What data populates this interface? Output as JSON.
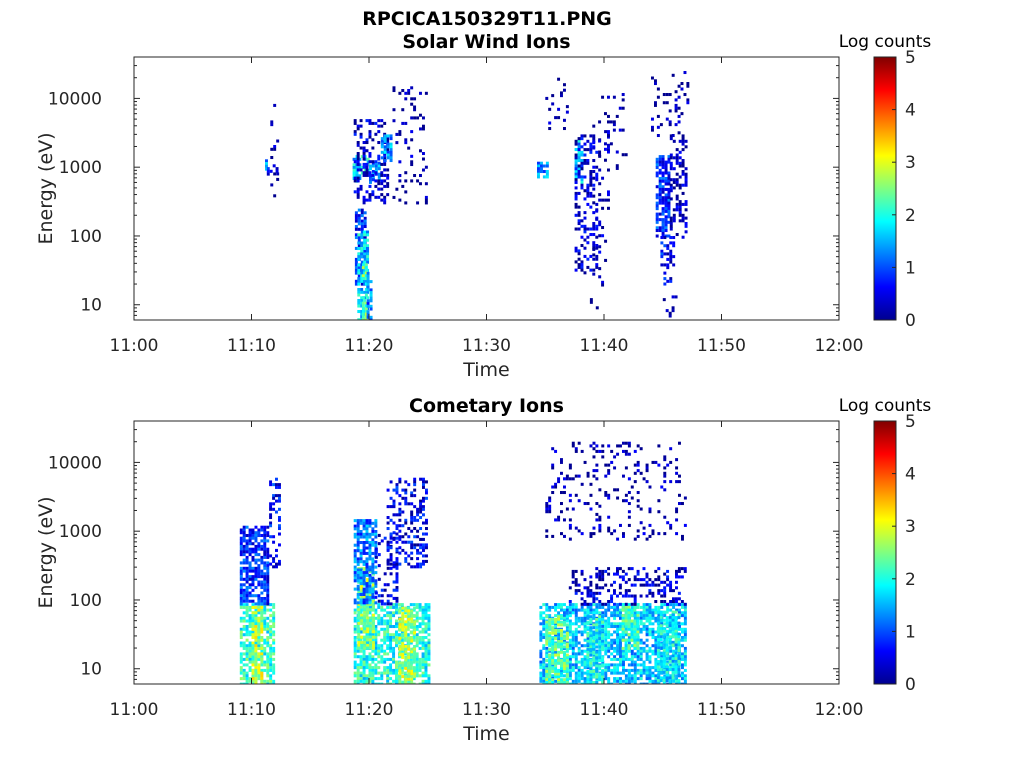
{
  "figure": {
    "suptitle": "RPCICA150329T11.PNG"
  },
  "colormap": [
    "#00008f",
    "#0000ff",
    "#0080ff",
    "#00ffff",
    "#80ff80",
    "#ffff00",
    "#ff8000",
    "#ff0000",
    "#800000"
  ],
  "chart_data": [
    {
      "type": "heatmap",
      "title": "Solar Wind Ions",
      "xlabel": "Time",
      "ylabel": "Energy (eV)",
      "y_scale": "log",
      "xlim": [
        "11:00",
        "12:00"
      ],
      "ylim": [
        6,
        40000
      ],
      "x_ticks": [
        "11:00",
        "11:10",
        "11:20",
        "11:30",
        "11:40",
        "11:50",
        "12:00"
      ],
      "y_ticks": [
        {
          "value": 10,
          "label": "10"
        },
        {
          "value": 100,
          "label": "100"
        },
        {
          "value": 1000,
          "label": "1000"
        },
        {
          "value": 10000,
          "label": "10000"
        }
      ],
      "colorbar": {
        "label": "Log counts",
        "range": [
          0,
          5
        ],
        "ticks": [
          "0",
          "1",
          "2",
          "3",
          "4",
          "5"
        ]
      },
      "blocks": [
        {
          "t": [
            11.15,
            11.3
          ],
          "e": [
            800,
            1300
          ],
          "v": 1.2
        },
        {
          "t": [
            11.3,
            12.2
          ],
          "e": [
            700,
            1100
          ],
          "v": 0.6
        },
        {
          "t": [
            11.6,
            12.2
          ],
          "e": [
            330,
            12000
          ],
          "v": 0.1
        },
        {
          "t": [
            18.6,
            19.3
          ],
          "e": [
            600,
            1500
          ],
          "v": 1.6
        },
        {
          "t": [
            19.3,
            20.0
          ],
          "e": [
            800,
            1500
          ],
          "v": 1.9
        },
        {
          "t": [
            20.0,
            21.0
          ],
          "e": [
            600,
            1200
          ],
          "v": 1.3
        },
        {
          "t": [
            18.7,
            21.5
          ],
          "e": [
            300,
            5000
          ],
          "v": 0.3
        },
        {
          "t": [
            21.0,
            22.0
          ],
          "e": [
            1300,
            3000
          ],
          "v": 1.4
        },
        {
          "t": [
            18.8,
            19.6
          ],
          "e": [
            20,
            250
          ],
          "v": 0.8
        },
        {
          "t": [
            19.0,
            19.8
          ],
          "e": [
            6,
            120
          ],
          "v": 1.7
        },
        {
          "t": [
            19.4,
            19.9
          ],
          "e": [
            6,
            40
          ],
          "v": 2.3
        },
        {
          "t": [
            19.8,
            20.3
          ],
          "e": [
            6,
            30
          ],
          "v": 1.2
        },
        {
          "t": [
            22.0,
            25.0
          ],
          "e": [
            300,
            15000
          ],
          "v": 0.05
        },
        {
          "t": [
            34.3,
            35.3
          ],
          "e": [
            750,
            1200
          ],
          "v": 1.3
        },
        {
          "t": [
            37.5,
            38.2
          ],
          "e": [
            600,
            2500
          ],
          "v": 1.5
        },
        {
          "t": [
            37.5,
            39.5
          ],
          "e": [
            30,
            3000
          ],
          "v": 0.3
        },
        {
          "t": [
            39.0,
            40.5
          ],
          "e": [
            20,
            6000
          ],
          "v": 0.15
        },
        {
          "t": [
            38.8,
            39.8
          ],
          "e": [
            6,
            15
          ],
          "v": 0.1
        },
        {
          "t": [
            35.0,
            37.0
          ],
          "e": [
            3000,
            20000
          ],
          "v": 0.05
        },
        {
          "t": [
            39.5,
            42.0
          ],
          "e": [
            1000,
            12000
          ],
          "v": 0.05
        },
        {
          "t": [
            44.4,
            45.6
          ],
          "e": [
            100,
            1500
          ],
          "v": 0.8
        },
        {
          "t": [
            45.6,
            47.0
          ],
          "e": [
            100,
            3000
          ],
          "v": 0.2
        },
        {
          "t": [
            44.8,
            46.0
          ],
          "e": [
            20,
            100
          ],
          "v": 0.6
        },
        {
          "t": [
            45.0,
            46.2
          ],
          "e": [
            6,
            15
          ],
          "v": 0.1
        },
        {
          "t": [
            44.0,
            47.2
          ],
          "e": [
            3000,
            25000
          ],
          "v": 0.05
        }
      ]
    },
    {
      "type": "heatmap",
      "title": "Cometary Ions",
      "xlabel": "Time",
      "ylabel": "Energy (eV)",
      "y_scale": "log",
      "xlim": [
        "11:00",
        "12:00"
      ],
      "ylim": [
        6,
        40000
      ],
      "x_ticks": [
        "11:00",
        "11:10",
        "11:20",
        "11:30",
        "11:40",
        "11:50",
        "12:00"
      ],
      "y_ticks": [
        {
          "value": 10,
          "label": "10"
        },
        {
          "value": 100,
          "label": "100"
        },
        {
          "value": 1000,
          "label": "1000"
        },
        {
          "value": 10000,
          "label": "10000"
        }
      ],
      "colorbar": {
        "label": "Log counts",
        "range": [
          0,
          5
        ],
        "ticks": [
          "0",
          "1",
          "2",
          "3",
          "4",
          "5"
        ]
      },
      "blocks": [
        {
          "t": [
            9.0,
            12.0
          ],
          "e": [
            6,
            90
          ],
          "v": 2.1
        },
        {
          "t": [
            10.0,
            11.0
          ],
          "e": [
            6,
            90
          ],
          "v": 2.8
        },
        {
          "t": [
            9.0,
            11.5
          ],
          "e": [
            90,
            1200
          ],
          "v": 0.8
        },
        {
          "t": [
            11.5,
            12.3
          ],
          "e": [
            300,
            6000
          ],
          "v": 0.6
        },
        {
          "t": [
            18.7,
            25.0
          ],
          "e": [
            6,
            90
          ],
          "v": 2.0
        },
        {
          "t": [
            19.0,
            20.5
          ],
          "e": [
            20,
            300
          ],
          "v": 2.6
        },
        {
          "t": [
            18.7,
            20.5
          ],
          "e": [
            90,
            1500
          ],
          "v": 1.2
        },
        {
          "t": [
            20.5,
            22.5
          ],
          "e": [
            90,
            1000
          ],
          "v": 0.4
        },
        {
          "t": [
            22.5,
            24.0
          ],
          "e": [
            6,
            80
          ],
          "v": 2.7
        },
        {
          "t": [
            21.5,
            25.0
          ],
          "e": [
            300,
            6000
          ],
          "v": 0.5
        },
        {
          "t": [
            34.5,
            47.0
          ],
          "e": [
            6,
            90
          ],
          "v": 1.6
        },
        {
          "t": [
            35.0,
            37.0
          ],
          "e": [
            6,
            60
          ],
          "v": 2.4
        },
        {
          "t": [
            38.5,
            39.8
          ],
          "e": [
            6,
            60
          ],
          "v": 1.9
        },
        {
          "t": [
            41.5,
            43.0
          ],
          "e": [
            20,
            90
          ],
          "v": 2.2
        },
        {
          "t": [
            44.5,
            46.5
          ],
          "e": [
            6,
            70
          ],
          "v": 1.8
        },
        {
          "t": [
            37.0,
            47.0
          ],
          "e": [
            90,
            300
          ],
          "v": 0.3
        },
        {
          "t": [
            35.0,
            47.0
          ],
          "e": [
            800,
            20000
          ],
          "v": 0.1
        }
      ]
    }
  ]
}
